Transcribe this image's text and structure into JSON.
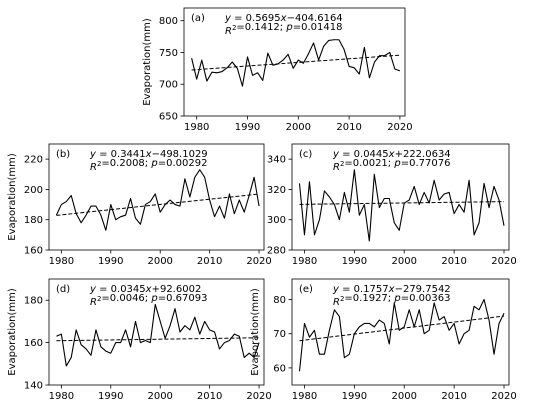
{
  "chart_data": [
    {
      "panel": "(a)",
      "type": "line",
      "ylabel": "Evaporation(mm)",
      "xlabel": "",
      "xlim": [
        1977.5,
        2021.0
      ],
      "ylim": [
        650,
        820
      ],
      "xticks": [
        1980,
        1990,
        2000,
        2010,
        2020
      ],
      "yticks": [
        650,
        700,
        750,
        800
      ],
      "equation": "y = 0.5695x−404.6164",
      "stats": "R²=0.1412; p=0.01418",
      "trend": {
        "slope": 0.5695,
        "intercept": -404.6164
      },
      "x": [
        1979,
        1980,
        1981,
        1982,
        1983,
        1984,
        1985,
        1986,
        1987,
        1988,
        1989,
        1990,
        1991,
        1992,
        1993,
        1994,
        1995,
        1996,
        1997,
        1998,
        1999,
        2000,
        2001,
        2002,
        2003,
        2004,
        2005,
        2006,
        2007,
        2008,
        2009,
        2010,
        2011,
        2012,
        2013,
        2014,
        2015,
        2016,
        2017,
        2018,
        2019,
        2020
      ],
      "values": [
        741,
        708,
        738,
        705,
        719,
        718,
        720,
        726,
        735,
        725,
        697,
        743,
        714,
        718,
        706,
        749,
        730,
        732,
        738,
        747,
        725,
        738,
        733,
        748,
        765,
        738,
        760,
        769,
        770,
        770,
        755,
        728,
        726,
        716,
        758,
        710,
        735,
        745,
        745,
        750,
        724,
        721
      ]
    },
    {
      "panel": "(b)",
      "type": "line",
      "ylabel": "Evaporation(mm)",
      "xlabel": "",
      "xlim": [
        1977.5,
        2021.0
      ],
      "ylim": [
        160,
        230
      ],
      "xticks": [
        1980,
        1990,
        2000,
        2010,
        2020
      ],
      "yticks": [
        160,
        180,
        200,
        220
      ],
      "equation": "y = 0.3441x−498.1029",
      "stats": "R²=0.2008; p=0.00292",
      "trend": {
        "slope": 0.3441,
        "intercept": -498.1029
      },
      "x": [
        1979,
        1980,
        1981,
        1982,
        1983,
        1984,
        1985,
        1986,
        1987,
        1988,
        1989,
        1990,
        1991,
        1992,
        1993,
        1994,
        1995,
        1996,
        1997,
        1998,
        1999,
        2000,
        2001,
        2002,
        2003,
        2004,
        2005,
        2006,
        2007,
        2008,
        2009,
        2010,
        2011,
        2012,
        2013,
        2014,
        2015,
        2016,
        2017,
        2018,
        2019,
        2020
      ],
      "values": [
        183,
        190,
        192,
        196,
        184,
        178,
        183,
        189,
        189,
        183,
        173,
        190,
        180,
        182,
        183,
        194,
        181,
        177,
        190,
        192,
        197,
        185,
        190,
        193,
        190,
        189,
        207,
        195,
        208,
        213,
        208,
        193,
        182,
        189,
        181,
        197,
        184,
        193,
        185,
        196,
        208,
        189
      ]
    },
    {
      "panel": "(c)",
      "type": "line",
      "ylabel": "",
      "xlabel": "",
      "xlim": [
        1977.5,
        2021.0
      ],
      "ylim": [
        280,
        350
      ],
      "xticks": [
        1980,
        1990,
        2000,
        2010,
        2020
      ],
      "yticks": [
        280,
        300,
        320,
        340
      ],
      "equation": "y = 0.0445x+222.0634",
      "stats": "R²=0.0021; p=0.77076",
      "trend": {
        "slope": 0.0445,
        "intercept": 222.0634
      },
      "x": [
        1979,
        1980,
        1981,
        1982,
        1983,
        1984,
        1985,
        1986,
        1987,
        1988,
        1989,
        1990,
        1991,
        1992,
        1993,
        1994,
        1995,
        1996,
        1997,
        1998,
        1999,
        2000,
        2001,
        2002,
        2003,
        2004,
        2005,
        2006,
        2007,
        2008,
        2009,
        2010,
        2011,
        2012,
        2013,
        2014,
        2015,
        2016,
        2017,
        2018,
        2019,
        2020
      ],
      "values": [
        324,
        290,
        325,
        290,
        300,
        319,
        315,
        310,
        300,
        318,
        305,
        333,
        303,
        310,
        286,
        330,
        308,
        314,
        314,
        298,
        293,
        311,
        313,
        322,
        310,
        318,
        311,
        326,
        313,
        317,
        318,
        304,
        310,
        305,
        326,
        290,
        298,
        324,
        308,
        322,
        313,
        296
      ]
    },
    {
      "panel": "(d)",
      "type": "line",
      "ylabel": "Evaporation(mm)",
      "xlabel": "",
      "xlim": [
        1977.5,
        2021.0
      ],
      "ylim": [
        140,
        190
      ],
      "xticks": [
        1980,
        1990,
        2000,
        2010,
        2020
      ],
      "yticks": [
        140,
        160,
        180
      ],
      "equation": "y = 0.0345x+92.6002",
      "stats": "R²=0.0046; p=0.67093",
      "trend": {
        "slope": 0.0345,
        "intercept": 92.6002
      },
      "x": [
        1979,
        1980,
        1981,
        1982,
        1983,
        1984,
        1985,
        1986,
        1987,
        1988,
        1989,
        1990,
        1991,
        1992,
        1993,
        1994,
        1995,
        1996,
        1997,
        1998,
        1999,
        2000,
        2001,
        2002,
        2003,
        2004,
        2005,
        2006,
        2007,
        2008,
        2009,
        2010,
        2011,
        2012,
        2013,
        2014,
        2015,
        2016,
        2017,
        2018,
        2019,
        2020
      ],
      "values": [
        163,
        164,
        149,
        153,
        166,
        159,
        157,
        154,
        166,
        158,
        156,
        155,
        160,
        160,
        166,
        158,
        170,
        160,
        161,
        160,
        178,
        170,
        162,
        168,
        176,
        165,
        168,
        166,
        172,
        164,
        170,
        166,
        165,
        157,
        160,
        161,
        164,
        163,
        153,
        155,
        153,
        160
      ]
    },
    {
      "panel": "(e)",
      "type": "line",
      "ylabel": "Evaporation(mm)",
      "xlabel": "",
      "xlim": [
        1977.5,
        2021.0
      ],
      "ylim": [
        55,
        86
      ],
      "xticks": [
        1980,
        1990,
        2000,
        2010,
        2020
      ],
      "yticks": [
        60,
        70,
        80
      ],
      "equation": "y = 0.1757x−279.7542",
      "stats": "R²=0.1927; p=0.00363",
      "trend": {
        "slope": 0.1757,
        "intercept": -279.7542
      },
      "x": [
        1979,
        1980,
        1981,
        1982,
        1983,
        1984,
        1985,
        1986,
        1987,
        1988,
        1989,
        1990,
        1991,
        1992,
        1993,
        1994,
        1995,
        1996,
        1997,
        1998,
        1999,
        2000,
        2001,
        2002,
        2003,
        2004,
        2005,
        2006,
        2007,
        2008,
        2009,
        2010,
        2011,
        2012,
        2013,
        2014,
        2015,
        2016,
        2017,
        2018,
        2019,
        2020
      ],
      "values": [
        59,
        73,
        69,
        71,
        64,
        64,
        71,
        77,
        75,
        63,
        64,
        70,
        72,
        73,
        73,
        72,
        74,
        73,
        67,
        79,
        71,
        72,
        77,
        72,
        77,
        70,
        71,
        79,
        74,
        75,
        71,
        73,
        67,
        70,
        71,
        78,
        77,
        80,
        74,
        64,
        73,
        76
      ]
    }
  ]
}
